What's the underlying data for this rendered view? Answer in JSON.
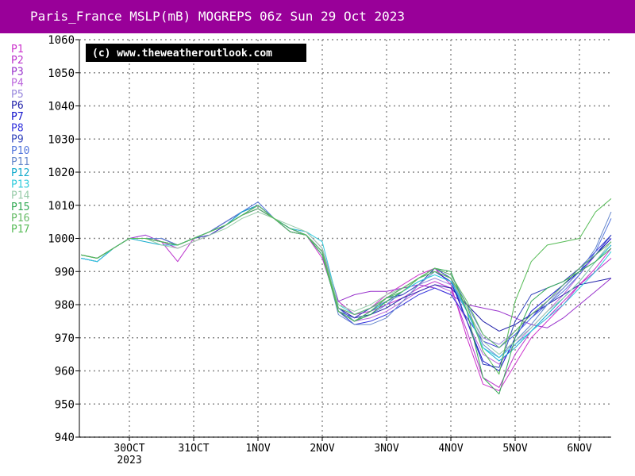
{
  "title": "Paris_France MSLP(mB) MOGREPS 06z Sun 29 Oct 2023",
  "watermark": "(c) www.theweatheroutlook.com",
  "colors": {
    "title_bg": "#990099",
    "grid": "#888888"
  },
  "chart_data": {
    "type": "line",
    "ylim": [
      940,
      1060
    ],
    "yticks": [
      940,
      950,
      960,
      970,
      980,
      990,
      1000,
      1010,
      1020,
      1030,
      1040,
      1050,
      1060
    ],
    "xlim": [
      -0.7,
      7.5
    ],
    "xticks": [
      {
        "x": 0,
        "label": "30OCT",
        "sub": "2023"
      },
      {
        "x": 1,
        "label": "31OCT",
        "sub": ""
      },
      {
        "x": 2,
        "label": "1NOV",
        "sub": ""
      },
      {
        "x": 3,
        "label": "2NOV",
        "sub": ""
      },
      {
        "x": 4,
        "label": "3NOV",
        "sub": ""
      },
      {
        "x": 5,
        "label": "4NOV",
        "sub": ""
      },
      {
        "x": 6,
        "label": "5NOV",
        "sub": ""
      },
      {
        "x": 7,
        "label": "6NOV",
        "sub": ""
      }
    ],
    "x": [
      -0.75,
      -0.5,
      -0.25,
      0.0,
      0.25,
      0.5,
      0.75,
      1.0,
      1.25,
      1.5,
      1.75,
      2.0,
      2.25,
      2.5,
      2.75,
      3.0,
      3.25,
      3.5,
      3.75,
      4.0,
      4.25,
      4.5,
      4.75,
      5.0,
      5.25,
      5.5,
      5.75,
      6.0,
      6.25,
      6.5,
      6.75,
      7.0,
      7.25,
      7.5
    ],
    "series": [
      {
        "name": "P1",
        "color": "#cc33cc",
        "values": [
          995,
          994,
          997,
          1000,
          1000,
          999,
          997,
          999,
          1001,
          1004,
          1007,
          1009,
          1006,
          1003,
          1001,
          994,
          979,
          976,
          979,
          983,
          986,
          989,
          991,
          986,
          970,
          956,
          954,
          962,
          970,
          975,
          980,
          986,
          991,
          997
        ]
      },
      {
        "name": "P2",
        "color": "#bb33cc",
        "values": [
          994,
          993,
          997,
          1000,
          1000,
          999,
          993,
          1000,
          1002,
          1004,
          1007,
          1010,
          1006,
          1002,
          1001,
          996,
          981,
          977,
          978,
          980,
          982,
          985,
          987,
          985,
          972,
          958,
          955,
          965,
          972,
          976,
          981,
          986,
          990,
          994
        ]
      },
      {
        "name": "P3",
        "color": "#9933cc",
        "values": [
          995,
          994,
          997,
          1000,
          1001,
          999,
          998,
          1000,
          1002,
          1005,
          1008,
          1010,
          1006,
          1003,
          1002,
          997,
          981,
          983,
          984,
          984,
          985,
          986,
          985,
          983,
          980,
          979,
          978,
          976,
          974,
          973,
          976,
          980,
          984,
          988
        ]
      },
      {
        "name": "P4",
        "color": "#bb66dd",
        "values": [
          994,
          993,
          997,
          1000,
          1000,
          999,
          998,
          1000,
          1001,
          1004,
          1007,
          1009,
          1006,
          1003,
          1001,
          995,
          978,
          975,
          976,
          978,
          981,
          984,
          986,
          984,
          975,
          965,
          962,
          968,
          973,
          978,
          983,
          989,
          995,
          1000
        ]
      },
      {
        "name": "P5",
        "color": "#9988dd",
        "values": [
          995,
          994,
          997,
          1000,
          1000,
          1000,
          998,
          1000,
          1002,
          1004,
          1007,
          1009,
          1006,
          1002,
          1001,
          995,
          979,
          977,
          979,
          981,
          983,
          986,
          988,
          986,
          978,
          970,
          968,
          972,
          977,
          981,
          985,
          990,
          995,
          999
        ]
      },
      {
        "name": "P6",
        "color": "#2222aa",
        "values": [
          995,
          994,
          997,
          1000,
          1000,
          1000,
          998,
          1000,
          1002,
          1005,
          1008,
          1010,
          1006,
          1003,
          1001,
          996,
          979,
          976,
          977,
          979,
          982,
          984,
          986,
          985,
          980,
          975,
          972,
          974,
          977,
          980,
          983,
          986,
          987,
          988
        ]
      },
      {
        "name": "P7",
        "color": "#1111cc",
        "values": [
          995,
          994,
          997,
          1000,
          1000,
          1000,
          998,
          1000,
          1002,
          1005,
          1008,
          1010,
          1006,
          1002,
          1001,
          995,
          978,
          975,
          978,
          982,
          985,
          988,
          990,
          987,
          975,
          963,
          960,
          970,
          978,
          982,
          986,
          990,
          995,
          1000
        ]
      },
      {
        "name": "P8",
        "color": "#3333dd",
        "values": [
          994,
          993,
          997,
          1000,
          1000,
          999,
          998,
          1000,
          1002,
          1005,
          1008,
          1010,
          1006,
          1002,
          1001,
          996,
          978,
          974,
          975,
          977,
          980,
          983,
          985,
          983,
          976,
          969,
          967,
          971,
          976,
          981,
          986,
          991,
          996,
          1001
        ]
      },
      {
        "name": "P9",
        "color": "#3344bb",
        "values": [
          995,
          994,
          997,
          1000,
          1000,
          1000,
          998,
          1000,
          1001,
          1004,
          1007,
          1009,
          1006,
          1003,
          1001,
          995,
          978,
          976,
          979,
          982,
          983,
          986,
          991,
          988,
          975,
          962,
          961,
          975,
          983,
          985,
          987,
          991,
          995,
          1001
        ]
      },
      {
        "name": "P10",
        "color": "#5577dd",
        "values": [
          995,
          994,
          997,
          1000,
          1000,
          999,
          998,
          1000,
          1002,
          1004,
          1008,
          1011,
          1006,
          1003,
          1001,
          996,
          979,
          975,
          977,
          980,
          984,
          988,
          991,
          989,
          980,
          971,
          967,
          971,
          976,
          980,
          984,
          989,
          996,
          1006
        ]
      },
      {
        "name": "P11",
        "color": "#6688cc",
        "values": [
          995,
          994,
          997,
          1000,
          1000,
          1000,
          998,
          1000,
          1002,
          1005,
          1008,
          1010,
          1006,
          1003,
          1001,
          996,
          977,
          974,
          974,
          976,
          981,
          986,
          990,
          988,
          978,
          968,
          964,
          969,
          974,
          980,
          985,
          990,
          997,
          1008
        ]
      },
      {
        "name": "P12",
        "color": "#11aacc",
        "values": [
          994,
          993,
          997,
          1000,
          999,
          998,
          998,
          1000,
          1002,
          1004,
          1008,
          1010,
          1006,
          1003,
          1001,
          995,
          978,
          975,
          978,
          981,
          984,
          987,
          989,
          987,
          978,
          967,
          963,
          967,
          972,
          977,
          982,
          987,
          993,
          998
        ]
      },
      {
        "name": "P13",
        "color": "#33ccdd",
        "values": [
          994,
          993,
          997,
          1000,
          1000,
          999,
          998,
          1000,
          1002,
          1004,
          1007,
          1010,
          1006,
          1003,
          1002,
          999,
          980,
          977,
          979,
          982,
          984,
          987,
          989,
          987,
          978,
          967,
          964,
          968,
          972,
          976,
          980,
          985,
          990,
          996
        ]
      },
      {
        "name": "P14",
        "color": "#99ccaa",
        "values": [
          995,
          994,
          997,
          1000,
          1000,
          998,
          997,
          999,
          1001,
          1003,
          1006,
          1008,
          1006,
          1004,
          1002,
          997,
          980,
          978,
          980,
          983,
          985,
          988,
          990,
          988,
          979,
          969,
          965,
          969,
          973,
          978,
          982,
          987,
          993,
          999
        ]
      },
      {
        "name": "P15",
        "color": "#33aa55",
        "values": [
          995,
          994,
          997,
          1000,
          1000,
          999,
          998,
          1000,
          1002,
          1004,
          1007,
          1010,
          1006,
          1002,
          1001,
          996,
          978,
          975,
          977,
          981,
          984,
          988,
          991,
          990,
          978,
          958,
          953,
          970,
          981,
          985,
          987,
          990,
          993,
          997
        ]
      },
      {
        "name": "P16",
        "color": "#66bb66",
        "values": [
          995,
          994,
          997,
          1000,
          1000,
          999,
          998,
          1000,
          1002,
          1004,
          1007,
          1010,
          1006,
          1002,
          1001,
          996,
          979,
          977,
          979,
          982,
          984,
          988,
          991,
          989,
          981,
          971,
          967,
          972,
          977,
          981,
          986,
          991,
          995,
          999
        ]
      },
      {
        "name": "P17",
        "color": "#55bb55",
        "values": [
          995,
          994,
          997,
          1000,
          1000,
          999,
          998,
          1000,
          1002,
          1004,
          1007,
          1009,
          1006,
          1003,
          1001,
          995,
          978,
          975,
          978,
          982,
          985,
          988,
          990,
          988,
          980,
          966,
          959,
          981,
          993,
          998,
          999,
          1000,
          1008,
          1012
        ]
      }
    ]
  }
}
